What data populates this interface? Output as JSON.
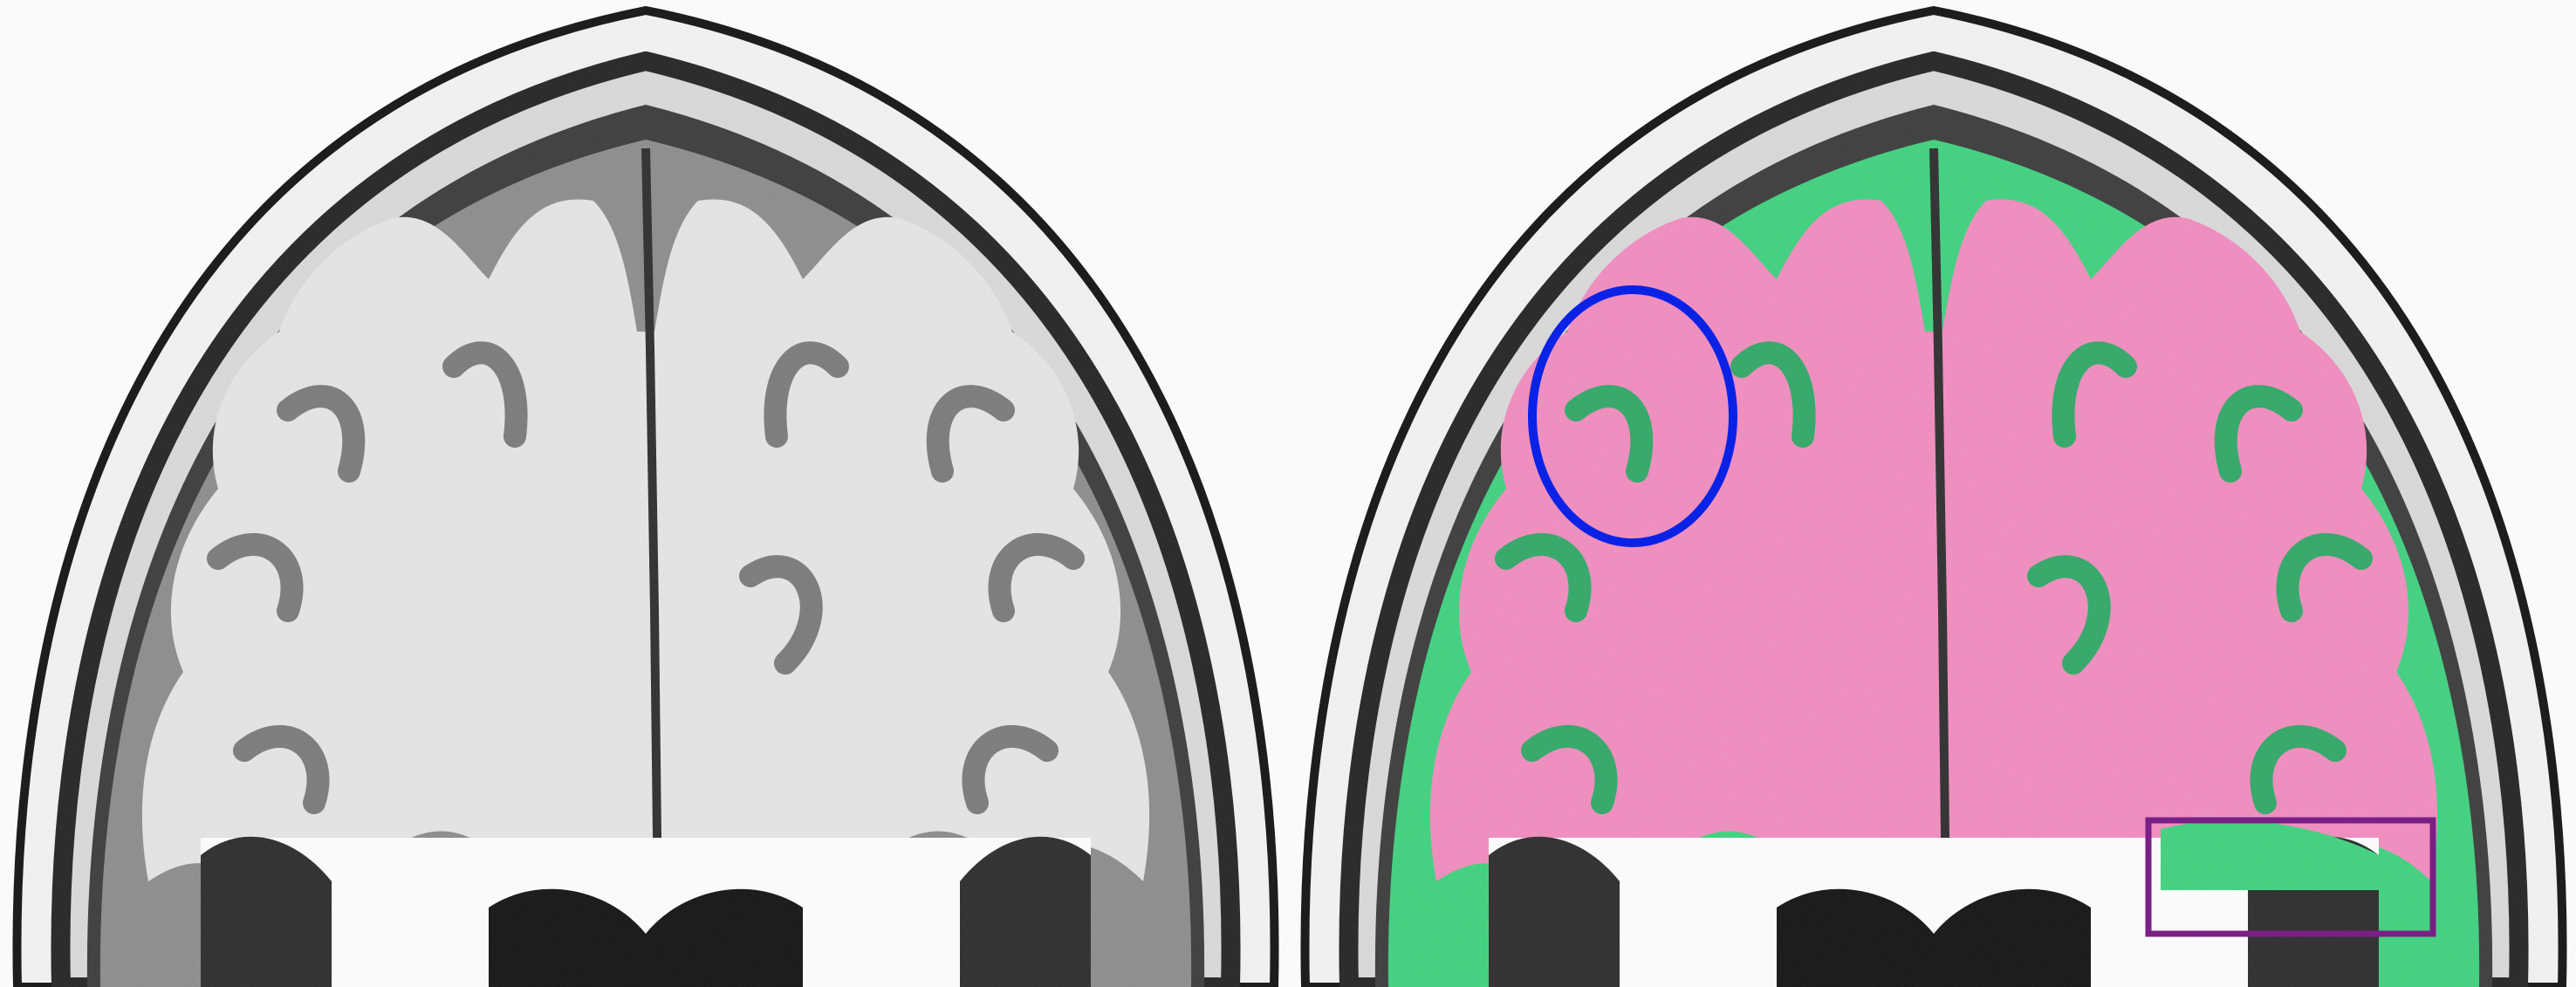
{
  "panels": [
    {
      "name": "original-t1-coronal-slice",
      "overlay": false
    },
    {
      "name": "segmented-t1-coronal-slice",
      "overlay": true
    }
  ],
  "colors": {
    "background": "#ffffff",
    "scalp": "#1a1a1a",
    "csf_dark": "#2a2a2a",
    "gray_matter_gray": "#8a8a8a",
    "white_matter_gray": "#e4e4e4",
    "white_matter_overlay": "#f28cbf",
    "gray_matter_overlay": "#3ed27e",
    "circle_annotation": "#0a22e6",
    "box_annotation": "#7a1f86"
  },
  "annotations": {
    "circle": {
      "shape": "ellipse",
      "color_key": "circle_annotation",
      "meaning": ""
    },
    "box": {
      "shape": "rectangle",
      "color_key": "box_annotation",
      "meaning": ""
    }
  }
}
